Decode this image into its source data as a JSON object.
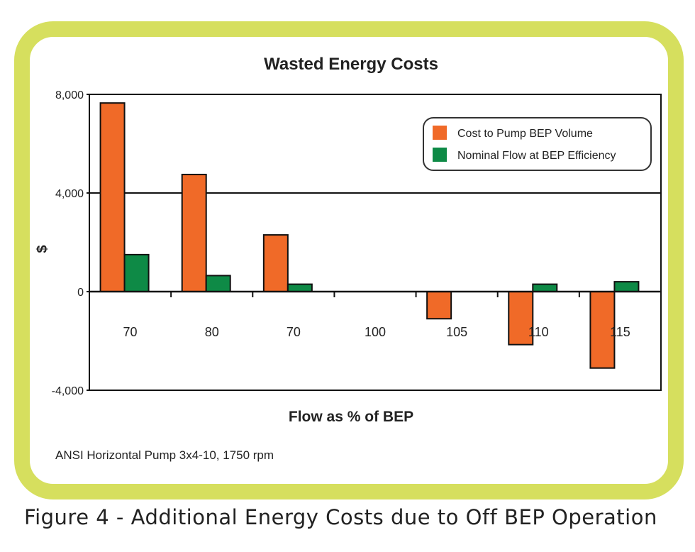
{
  "chart_data": {
    "type": "bar",
    "title": "Wasted Energy Costs",
    "xlabel": "Flow as % of BEP",
    "ylabel": "$",
    "categories": [
      "70",
      "80",
      "70",
      "100",
      "105",
      "110",
      "115"
    ],
    "series": [
      {
        "name": "Cost to Pump BEP Volume",
        "color": "#f06a28",
        "values": [
          7650,
          4750,
          2300,
          0,
          -1100,
          -2150,
          -3100
        ]
      },
      {
        "name": "Nominal Flow at BEP Efficiency",
        "color": "#0e8a46",
        "values": [
          1500,
          650,
          300,
          0,
          0,
          300,
          400
        ]
      }
    ],
    "ylim": [
      -4000,
      8000
    ],
    "yticks": [
      8000,
      4000,
      0,
      -4000
    ],
    "ytick_labels": [
      "8,000",
      "4,000",
      "0",
      "-4,000"
    ],
    "grid": "horizontal at 4,000",
    "legend": "top-right"
  },
  "note": "ANSI Horizontal Pump 3x4-10, 1750 rpm",
  "caption": "Figure 4 - Additional Energy Costs due to Off BEP Operation",
  "frame_color": "#d6df5e"
}
